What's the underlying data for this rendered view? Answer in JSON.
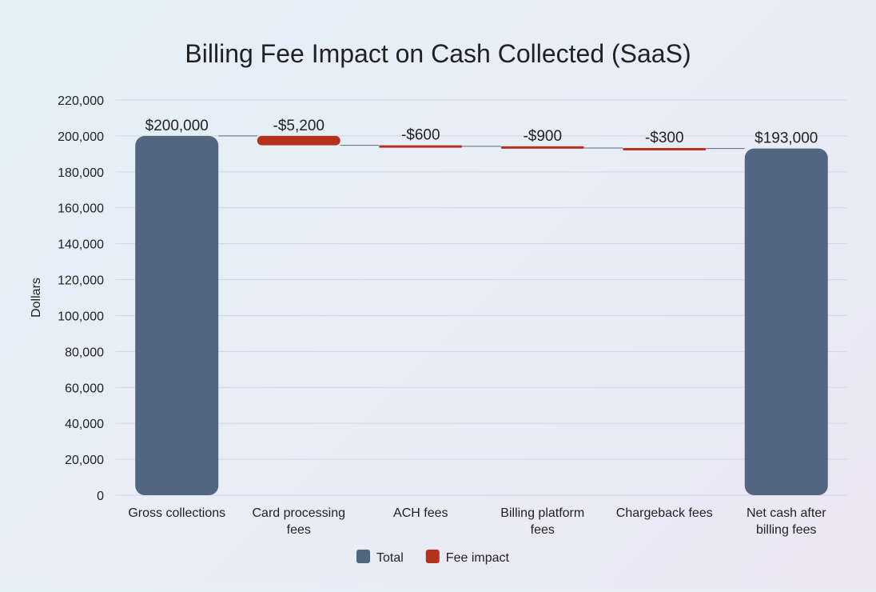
{
  "chart_data": {
    "type": "waterfall",
    "title": "Billing Fee Impact on Cash Collected (SaaS)",
    "xlabel": "",
    "ylabel": "Dollars",
    "ylim": [
      0,
      220000
    ],
    "yticks": [
      0,
      20000,
      40000,
      60000,
      80000,
      100000,
      120000,
      140000,
      160000,
      180000,
      200000,
      220000
    ],
    "ytick_labels": [
      "0",
      "20,000",
      "40,000",
      "60,000",
      "80,000",
      "100,000",
      "120,000",
      "140,000",
      "160,000",
      "180,000",
      "200,000",
      "220,000"
    ],
    "grid": true,
    "legend_placement": "bottom",
    "categories": [
      [
        "Gross collections"
      ],
      [
        "Card processing",
        "fees"
      ],
      [
        "ACH fees"
      ],
      [
        "Billing platform",
        "fees"
      ],
      [
        "Chargeback fees"
      ],
      [
        "Net cash after",
        "billing fees"
      ]
    ],
    "values": [
      200000,
      -5200,
      -600,
      -900,
      -300,
      193000
    ],
    "kinds": [
      "total",
      "fee",
      "fee",
      "fee",
      "fee",
      "total"
    ],
    "data_labels": [
      "$200,000",
      "-$5,200",
      "-$600",
      "-$900",
      "-$300",
      "$193,000"
    ],
    "legend": [
      {
        "name": "Total",
        "kind": "total"
      },
      {
        "name": "Fee impact",
        "kind": "fee"
      }
    ],
    "colors": {
      "total": "#536680",
      "fee": "#b5321c",
      "grid": "#cfd8e3",
      "connector": "#5b6b7d"
    }
  }
}
